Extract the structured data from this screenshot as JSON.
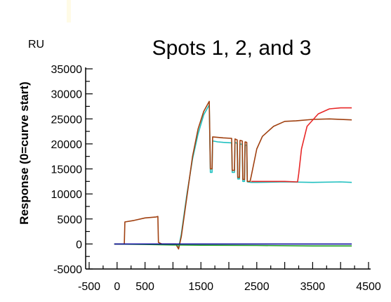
{
  "chart_data": {
    "type": "line",
    "title": "Spots 1, 2, and 3",
    "unit_label": "RU",
    "xlabel": "",
    "ylabel": "Response (0=curve start)",
    "xlim": [
      -500,
      4500
    ],
    "ylim": [
      -5000,
      35000
    ],
    "x_ticks": [
      -500,
      0,
      500,
      1500,
      2500,
      3500,
      4500
    ],
    "x_tick_labels": [
      "-500",
      "0",
      "500",
      "1500",
      "2500",
      "3500",
      "4500"
    ],
    "y_ticks": [
      35000,
      30000,
      25000,
      20000,
      15000,
      10000,
      5000,
      0,
      -5000
    ],
    "y_tick_labels": [
      "35000",
      "30000",
      "25000",
      "20000",
      "15000",
      "10000",
      "5000",
      "0",
      "-5000"
    ],
    "grid": false,
    "legend": "none",
    "series": [
      {
        "color": "#20c0c0",
        "points": [
          [
            1050,
            0
          ],
          [
            1100,
            -800
          ],
          [
            1150,
            2000
          ],
          [
            1250,
            10000
          ],
          [
            1350,
            17000
          ],
          [
            1450,
            22000
          ],
          [
            1550,
            25800
          ],
          [
            1650,
            27800
          ],
          [
            1670,
            14300
          ],
          [
            1700,
            14300
          ],
          [
            1710,
            20600
          ],
          [
            1800,
            20400
          ],
          [
            1900,
            20300
          ],
          [
            2050,
            20200
          ],
          [
            2060,
            14300
          ],
          [
            2100,
            14300
          ],
          [
            2110,
            20300
          ],
          [
            2150,
            20100
          ],
          [
            2160,
            13000
          ],
          [
            2190,
            13000
          ],
          [
            2200,
            20000
          ],
          [
            2240,
            19900
          ],
          [
            2250,
            12500
          ],
          [
            2280,
            12500
          ],
          [
            2290,
            19800
          ],
          [
            2320,
            19700
          ],
          [
            2330,
            12400
          ],
          [
            2400,
            12300
          ],
          [
            2500,
            12300
          ],
          [
            3000,
            12400
          ],
          [
            3500,
            12300
          ],
          [
            4000,
            12400
          ],
          [
            4200,
            12300
          ]
        ]
      },
      {
        "color": "#a04010",
        "points": [
          [
            -50,
            0
          ],
          [
            130,
            0
          ],
          [
            140,
            4400
          ],
          [
            300,
            4700
          ],
          [
            500,
            5200
          ],
          [
            700,
            5400
          ],
          [
            730,
            5500
          ],
          [
            740,
            300
          ],
          [
            800,
            0
          ],
          [
            1050,
            0
          ],
          [
            1100,
            -1000
          ],
          [
            1150,
            1500
          ],
          [
            1250,
            9500
          ],
          [
            1350,
            17500
          ],
          [
            1450,
            23000
          ],
          [
            1550,
            26500
          ],
          [
            1650,
            28500
          ],
          [
            1670,
            15000
          ],
          [
            1700,
            15000
          ],
          [
            1710,
            21400
          ],
          [
            1800,
            21300
          ],
          [
            1900,
            21200
          ],
          [
            2050,
            21100
          ],
          [
            2060,
            14700
          ],
          [
            2100,
            14700
          ],
          [
            2110,
            21000
          ],
          [
            2150,
            20800
          ],
          [
            2160,
            13300
          ],
          [
            2190,
            13300
          ],
          [
            2200,
            20700
          ],
          [
            2240,
            20600
          ],
          [
            2250,
            12900
          ],
          [
            2280,
            12900
          ],
          [
            2290,
            20400
          ],
          [
            2320,
            20300
          ],
          [
            2330,
            12500
          ],
          [
            2380,
            12500
          ],
          [
            2400,
            13500
          ],
          [
            2500,
            19000
          ],
          [
            2600,
            21500
          ],
          [
            2800,
            23500
          ],
          [
            3000,
            24500
          ],
          [
            3200,
            24600
          ],
          [
            3500,
            24900
          ],
          [
            3800,
            25000
          ],
          [
            4200,
            24800
          ]
        ]
      },
      {
        "color": "#e82828",
        "points": [
          [
            2400,
            12500
          ],
          [
            3000,
            12500
          ],
          [
            3230,
            12400
          ],
          [
            3250,
            14000
          ],
          [
            3300,
            19000
          ],
          [
            3400,
            23500
          ],
          [
            3600,
            26000
          ],
          [
            3800,
            27000
          ],
          [
            4000,
            27200
          ],
          [
            4200,
            27200
          ]
        ]
      },
      {
        "color": "#20a020",
        "points": [
          [
            -50,
            0
          ],
          [
            500,
            -100
          ],
          [
            1000,
            -200
          ],
          [
            1500,
            -250
          ],
          [
            2500,
            -300
          ],
          [
            3500,
            -400
          ],
          [
            4200,
            -400
          ]
        ]
      },
      {
        "color": "#1010a0",
        "points": [
          [
            -50,
            0
          ],
          [
            1000,
            0
          ],
          [
            2000,
            0
          ],
          [
            3000,
            0
          ],
          [
            4200,
            0
          ]
        ]
      }
    ]
  }
}
